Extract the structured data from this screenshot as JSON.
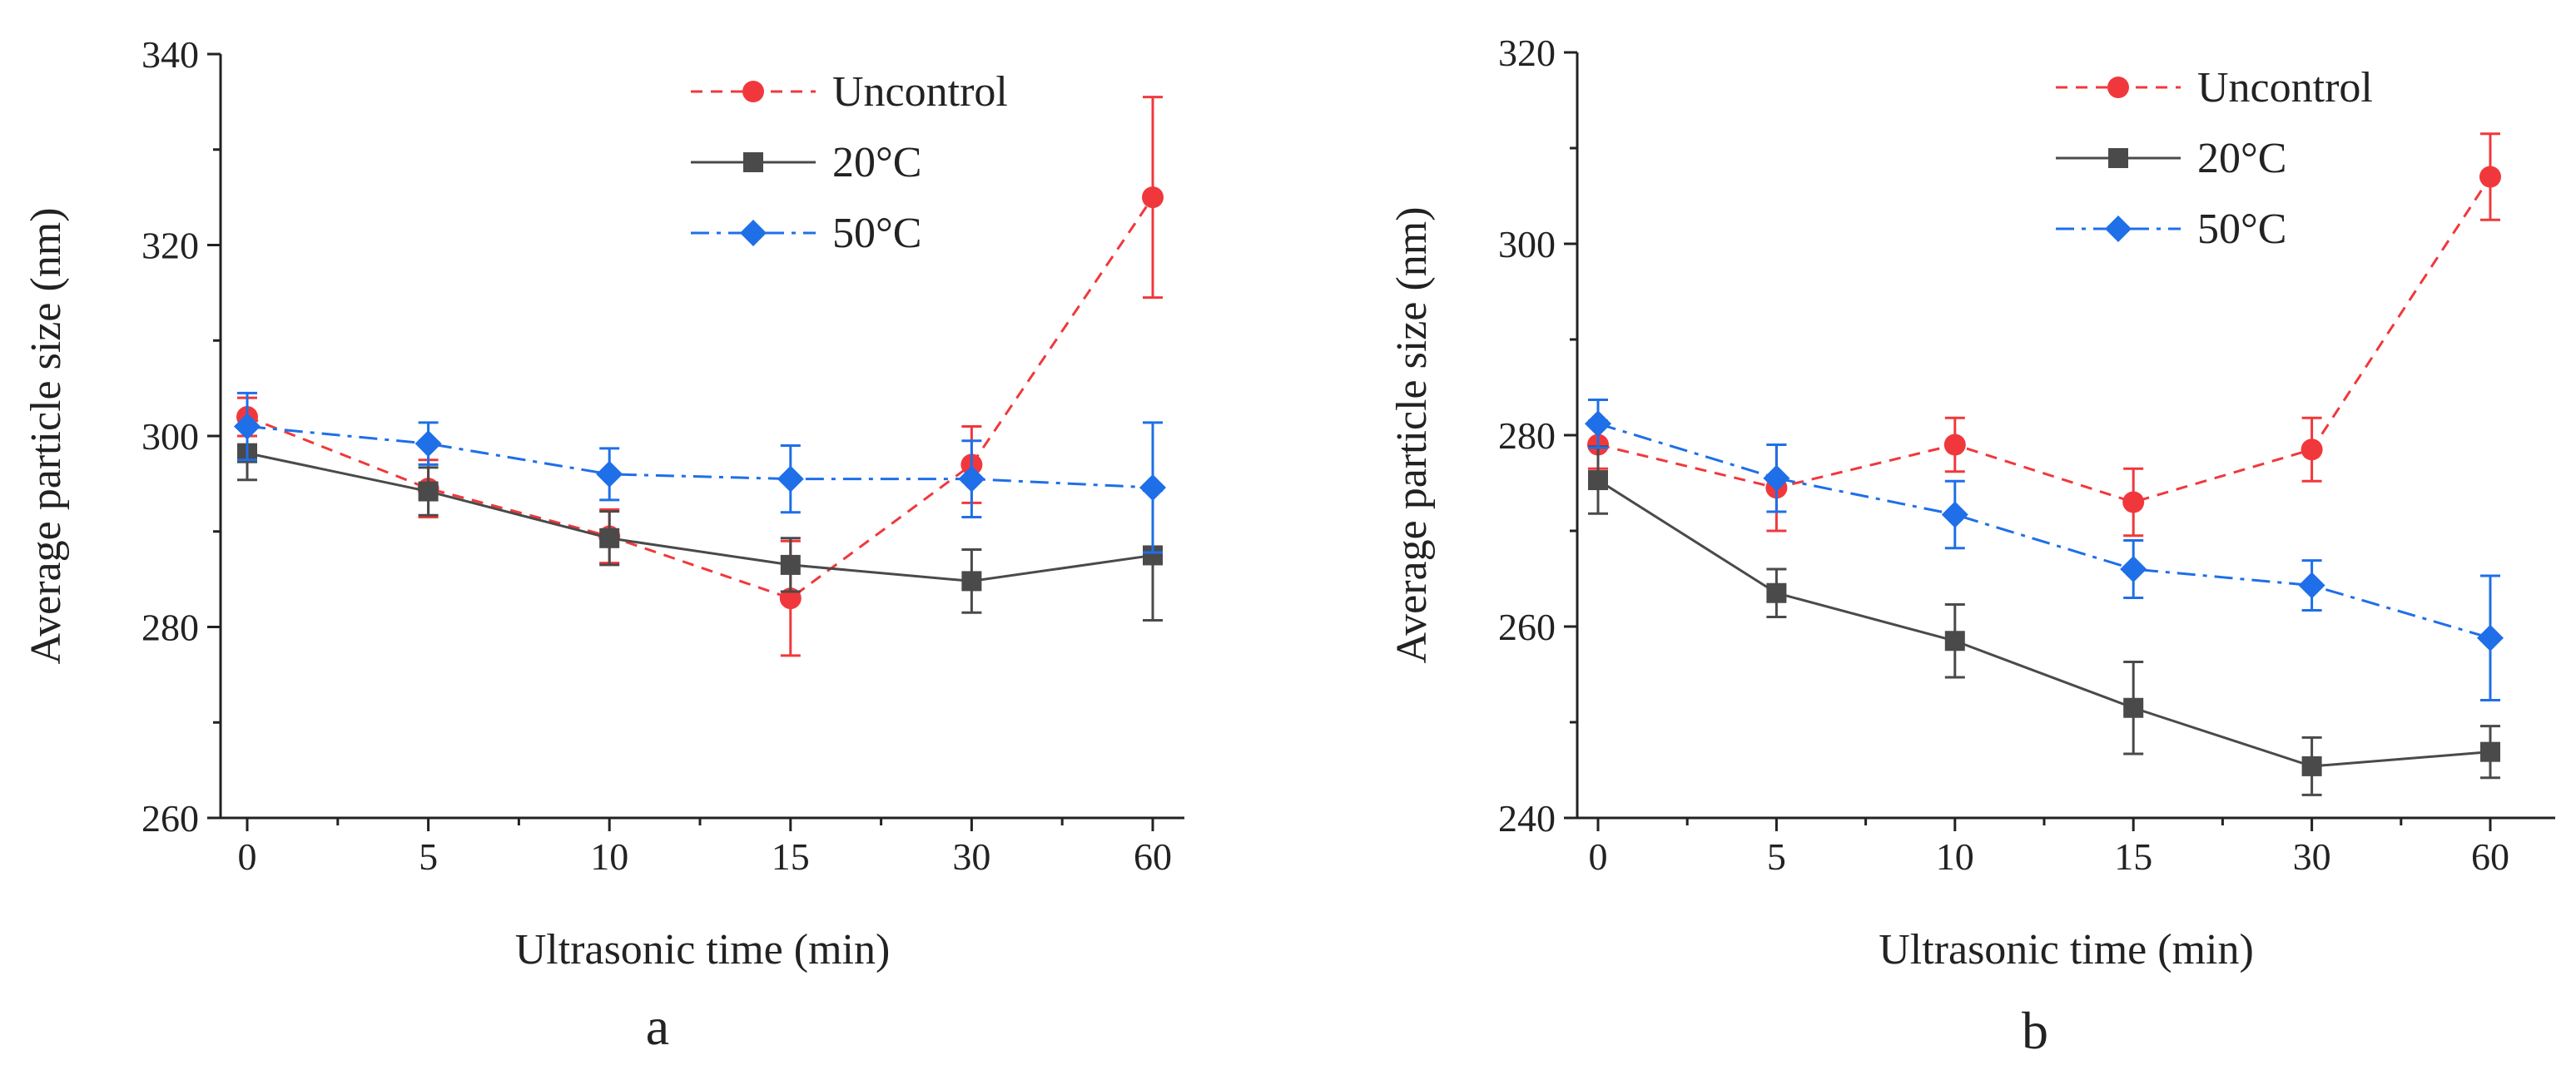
{
  "colors": {
    "Uncontrol": "#f0383c",
    "20°C": "#4a4a4a",
    "50°C": "#1e6fe8",
    "axis": "#222222"
  },
  "chart_data": [
    {
      "type": "line",
      "panel_label": "a",
      "xlabel": "Ultrasonic time (min)",
      "ylabel": "Average particle size (nm)",
      "categories": [
        "0",
        "5",
        "10",
        "15",
        "30",
        "60"
      ],
      "ylim": [
        260,
        340
      ],
      "yticks": [
        260,
        280,
        300,
        320,
        340
      ],
      "legend_position": "top-right",
      "series": [
        {
          "name": "Uncontrol",
          "style": "dash",
          "marker": "circle",
          "values": [
            302,
            294.5,
            289.5,
            283,
            297,
            325
          ],
          "errors": [
            2,
            3,
            2.8,
            6,
            4,
            10.5
          ]
        },
        {
          "name": "20°C",
          "style": "solid",
          "marker": "square",
          "values": [
            298.2,
            294.2,
            289.3,
            286.5,
            284.8,
            287.5
          ],
          "errors": [
            2.8,
            2.5,
            2.8,
            2.8,
            3.3,
            6.8
          ]
        },
        {
          "name": "50°C",
          "style": "dashdot",
          "marker": "diamond",
          "values": [
            301,
            299.2,
            296,
            295.5,
            295.5,
            294.6
          ],
          "errors": [
            3.5,
            2.2,
            2.7,
            3.5,
            4,
            6.8
          ]
        }
      ]
    },
    {
      "type": "line",
      "panel_label": "b",
      "xlabel": "Ultrasonic time (min)",
      "ylabel": "Average particle size (nm)",
      "categories": [
        "0",
        "5",
        "10",
        "15",
        "30",
        "60"
      ],
      "ylim": [
        240,
        320
      ],
      "yticks": [
        240,
        260,
        280,
        300,
        320
      ],
      "legend_position": "top-right",
      "series": [
        {
          "name": "Uncontrol",
          "style": "dash",
          "marker": "circle",
          "values": [
            279,
            274.5,
            279,
            273,
            278.5,
            307
          ],
          "errors": [
            2.5,
            4.5,
            2.8,
            3.5,
            3.3,
            4.5
          ]
        },
        {
          "name": "20°C",
          "style": "solid",
          "marker": "square",
          "values": [
            275.3,
            263.5,
            258.5,
            251.5,
            245.4,
            246.9
          ],
          "errors": [
            3.5,
            2.5,
            3.8,
            4.8,
            3,
            2.7
          ]
        },
        {
          "name": "50°C",
          "style": "dashdot",
          "marker": "diamond",
          "values": [
            281.2,
            275.5,
            271.7,
            266,
            264.3,
            258.8
          ],
          "errors": [
            2.5,
            3.5,
            3.5,
            3,
            2.6,
            6.5
          ]
        }
      ]
    }
  ]
}
